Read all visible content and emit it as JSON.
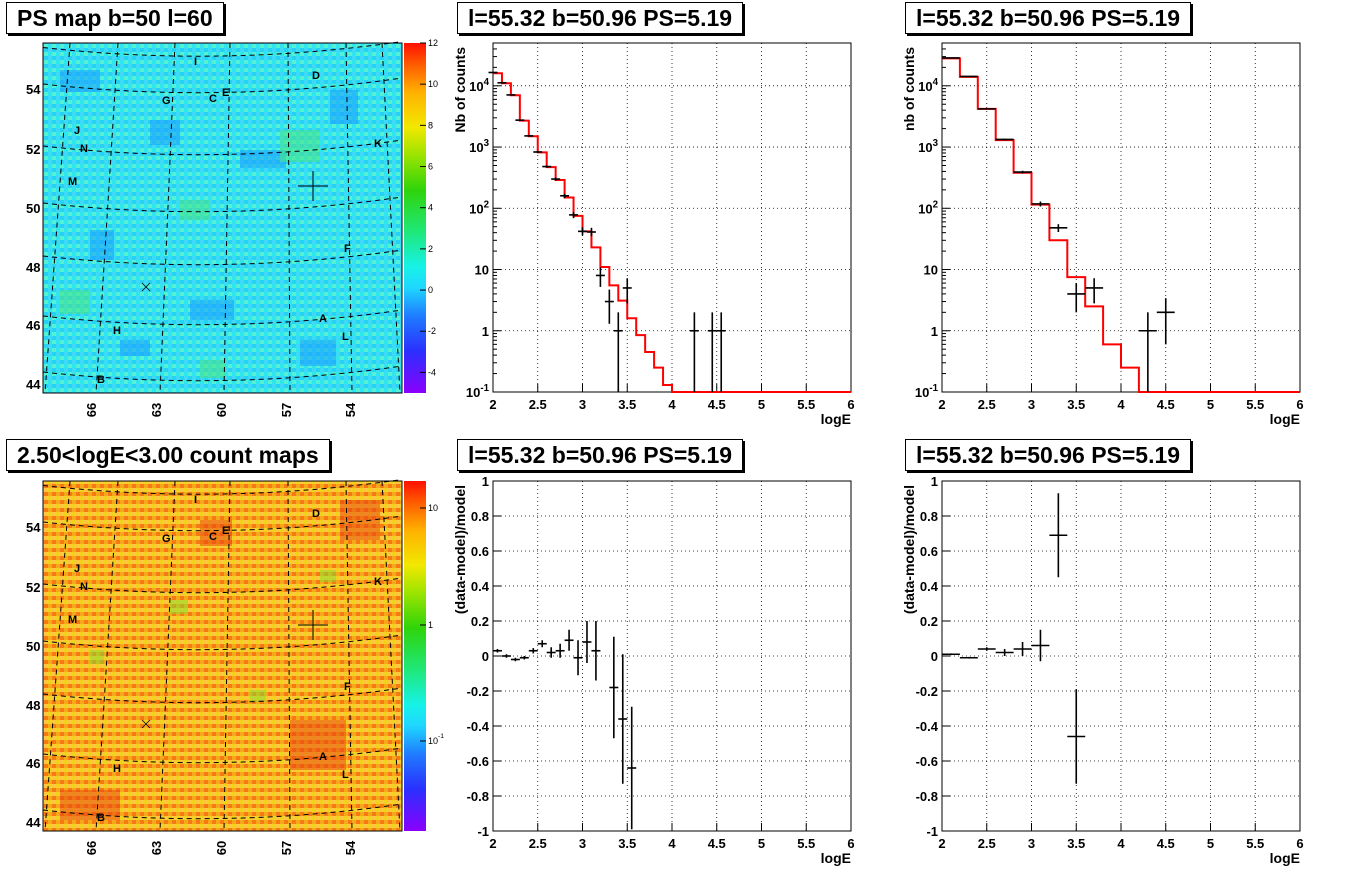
{
  "titles": {
    "map_top": "PS map b=50 l=60",
    "map_bottom": "2.50<logE<3.00 count maps",
    "spec_top_mid": "l=55.32 b=50.96 PS=5.19",
    "spec_top_right": "l=55.32 b=50.96 PS=5.19",
    "res_bottom_mid": "l=55.32 b=50.96 PS=5.19",
    "res_bottom_right": "l=55.32 b=50.96 PS=5.19"
  },
  "colors": {
    "model_line": "#ff0000",
    "data": "#000000",
    "grid": "#000000",
    "background": "#ffffff"
  },
  "chart_data": [
    {
      "id": "map_top",
      "type": "heatmap",
      "title": "PS map b=50 l=60",
      "xticks": [
        "66",
        "63",
        "60",
        "57",
        "54"
      ],
      "yticks": [
        "54",
        "52",
        "50",
        "48",
        "46",
        "44"
      ],
      "colorbar_ticks": [
        "12",
        "10",
        "8",
        "6",
        "4",
        "2",
        "0",
        "-2",
        "-4"
      ],
      "zlim": [
        -5,
        12
      ],
      "source_labels": [
        "I",
        "D",
        "G",
        "C",
        "E",
        "J",
        "N",
        "K",
        "M",
        "F",
        "A",
        "H",
        "L",
        "B"
      ]
    },
    {
      "id": "spec_top_mid",
      "type": "line",
      "title": "l=55.32 b=50.96 PS=5.19",
      "xlabel": "logE",
      "ylabel": "Nb of counts",
      "xlim": [
        2,
        6
      ],
      "ylim": [
        0.1,
        50000
      ],
      "yscale": "log",
      "grid": true,
      "xticks": [
        "2",
        "2.5",
        "3",
        "3.5",
        "4",
        "4.5",
        "5",
        "5.5",
        "6"
      ],
      "yticks": [
        "10^4",
        "10^3",
        "10^2",
        "10",
        "1",
        "10^-1"
      ],
      "model_step": {
        "edges": [
          2.0,
          2.1,
          2.2,
          2.3,
          2.4,
          2.5,
          2.6,
          2.7,
          2.8,
          2.9,
          3.0,
          3.1,
          3.2,
          3.3,
          3.4,
          3.5,
          3.6,
          3.7,
          3.8,
          3.9,
          4.0,
          4.1,
          6.0
        ],
        "values": [
          16000,
          11000,
          7000,
          2700,
          1500,
          820,
          470,
          290,
          150,
          75,
          42,
          23,
          11,
          5.5,
          3.1,
          1.6,
          0.85,
          0.45,
          0.25,
          0.13,
          0.1,
          0.1
        ]
      },
      "data_points": [
        {
          "x": 2.0,
          "y": 16500,
          "xerr": 0.05,
          "ylo": 16300,
          "yhi": 16700
        },
        {
          "x": 2.1,
          "y": 11200,
          "xerr": 0.05,
          "ylo": 11000,
          "yhi": 11400
        },
        {
          "x": 2.2,
          "y": 7100,
          "xerr": 0.05,
          "ylo": 6950,
          "yhi": 7250
        },
        {
          "x": 2.3,
          "y": 2750,
          "xerr": 0.05,
          "ylo": 2700,
          "yhi": 2800
        },
        {
          "x": 2.4,
          "y": 1520,
          "xerr": 0.05,
          "ylo": 1480,
          "yhi": 1560
        },
        {
          "x": 2.5,
          "y": 830,
          "xerr": 0.05,
          "ylo": 800,
          "yhi": 860
        },
        {
          "x": 2.6,
          "y": 480,
          "xerr": 0.05,
          "ylo": 460,
          "yhi": 500
        },
        {
          "x": 2.7,
          "y": 300,
          "xerr": 0.05,
          "ylo": 283,
          "yhi": 317
        },
        {
          "x": 2.8,
          "y": 160,
          "xerr": 0.05,
          "ylo": 147,
          "yhi": 173
        },
        {
          "x": 2.9,
          "y": 78,
          "xerr": 0.05,
          "ylo": 69,
          "yhi": 87
        },
        {
          "x": 3.0,
          "y": 42,
          "xerr": 0.05,
          "ylo": 36,
          "yhi": 49
        },
        {
          "x": 3.1,
          "y": 41,
          "xerr": 0.05,
          "ylo": 35,
          "yhi": 48
        },
        {
          "x": 3.2,
          "y": 8,
          "xerr": 0.05,
          "ylo": 5.2,
          "yhi": 10.8
        },
        {
          "x": 3.3,
          "y": 3,
          "xerr": 0.05,
          "ylo": 1.3,
          "yhi": 4.7
        },
        {
          "x": 3.4,
          "y": 1,
          "xerr": 0.05,
          "ylo": 0.1,
          "yhi": 2
        },
        {
          "x": 3.5,
          "y": 5,
          "xerr": 0.05,
          "ylo": 2.8,
          "yhi": 7.2
        },
        {
          "x": 4.25,
          "y": 1,
          "xerr": 0.05,
          "ylo": 0.1,
          "yhi": 2
        },
        {
          "x": 4.45,
          "y": 1,
          "xerr": 0.05,
          "ylo": 0.1,
          "yhi": 2
        },
        {
          "x": 4.55,
          "y": 1,
          "xerr": 0.05,
          "ylo": 0.1,
          "yhi": 2
        }
      ]
    },
    {
      "id": "map_bottom",
      "type": "heatmap",
      "title": "2.50<logE<3.00 count maps",
      "xticks": [
        "66",
        "63",
        "60",
        "57",
        "54"
      ],
      "yticks": [
        "54",
        "52",
        "50",
        "48",
        "46",
        "44"
      ],
      "colorbar_ticks": [
        "10",
        "1",
        "10^-1"
      ],
      "zscale": "log",
      "source_labels": [
        "I",
        "D",
        "G",
        "C",
        "E",
        "J",
        "N",
        "K",
        "M",
        "F",
        "A",
        "H",
        "L",
        "B"
      ]
    },
    {
      "id": "spec_top_right",
      "type": "line",
      "title": "l=55.32 b=50.96 PS=5.19",
      "xlabel": "logE",
      "ylabel": "nb of counts",
      "xlim": [
        2,
        6
      ],
      "ylim": [
        0.1,
        50000
      ],
      "yscale": "log",
      "grid": true,
      "xticks": [
        "2",
        "2.5",
        "3",
        "3.5",
        "4",
        "4.5",
        "5",
        "5.5",
        "6"
      ],
      "yticks": [
        "10^4",
        "10^3",
        "10^2",
        "10",
        "1",
        "10^-1"
      ],
      "model_step": {
        "edges": [
          2.0,
          2.2,
          2.4,
          2.6,
          2.8,
          3.0,
          3.2,
          3.4,
          3.6,
          3.8,
          4.0,
          4.2,
          6.0
        ],
        "values": [
          28000,
          14000,
          4200,
          1300,
          380,
          115,
          30,
          7.5,
          2.5,
          0.6,
          0.25,
          0.1
        ]
      },
      "data_points": [
        {
          "x": 2.1,
          "y": 28500,
          "xerr": 0.1,
          "ylo": 28200,
          "yhi": 28800
        },
        {
          "x": 2.3,
          "y": 14200,
          "xerr": 0.1,
          "ylo": 14000,
          "yhi": 14400
        },
        {
          "x": 2.5,
          "y": 4200,
          "xerr": 0.1,
          "ylo": 4130,
          "yhi": 4270
        },
        {
          "x": 2.7,
          "y": 1330,
          "xerr": 0.1,
          "ylo": 1290,
          "yhi": 1370
        },
        {
          "x": 2.9,
          "y": 390,
          "xerr": 0.1,
          "ylo": 370,
          "yhi": 410
        },
        {
          "x": 3.1,
          "y": 118,
          "xerr": 0.1,
          "ylo": 107,
          "yhi": 129
        },
        {
          "x": 3.3,
          "y": 48,
          "xerr": 0.1,
          "ylo": 41,
          "yhi": 55
        },
        {
          "x": 3.5,
          "y": 4,
          "xerr": 0.1,
          "ylo": 2,
          "yhi": 6
        },
        {
          "x": 3.7,
          "y": 5,
          "xerr": 0.1,
          "ylo": 2.8,
          "yhi": 7.2
        },
        {
          "x": 4.3,
          "y": 1,
          "xerr": 0.1,
          "ylo": 0.1,
          "yhi": 2
        },
        {
          "x": 4.5,
          "y": 2,
          "xerr": 0.1,
          "ylo": 0.6,
          "yhi": 3.4
        }
      ]
    },
    {
      "id": "res_bottom_mid",
      "type": "scatter",
      "title": "l=55.32 b=50.96 PS=5.19",
      "xlabel": "logE",
      "ylabel": "(data-model)/model",
      "xlim": [
        2,
        6
      ],
      "ylim": [
        -1,
        1
      ],
      "grid": true,
      "xticks": [
        "2",
        "2.5",
        "3",
        "3.5",
        "4",
        "4.5",
        "5",
        "5.5",
        "6"
      ],
      "yticks": [
        "1",
        "0.8",
        "0.6",
        "0.4",
        "0.2",
        "0",
        "-0.2",
        "-0.4",
        "-0.6",
        "-0.8",
        "-1"
      ],
      "data_points": [
        {
          "x": 2.05,
          "y": 0.03,
          "xerr": 0.05,
          "yerr": 0.01
        },
        {
          "x": 2.15,
          "y": 0.0,
          "xerr": 0.05,
          "yerr": 0.01
        },
        {
          "x": 2.25,
          "y": -0.02,
          "xerr": 0.05,
          "yerr": 0.01
        },
        {
          "x": 2.35,
          "y": -0.01,
          "xerr": 0.05,
          "yerr": 0.01
        },
        {
          "x": 2.45,
          "y": 0.03,
          "xerr": 0.05,
          "yerr": 0.015
        },
        {
          "x": 2.55,
          "y": 0.07,
          "xerr": 0.05,
          "yerr": 0.02
        },
        {
          "x": 2.65,
          "y": 0.02,
          "xerr": 0.05,
          "yerr": 0.03
        },
        {
          "x": 2.75,
          "y": 0.03,
          "xerr": 0.05,
          "yerr": 0.04
        },
        {
          "x": 2.85,
          "y": 0.09,
          "xerr": 0.05,
          "yerr": 0.06
        },
        {
          "x": 2.95,
          "y": -0.01,
          "xerr": 0.05,
          "yerr": 0.1
        },
        {
          "x": 3.05,
          "y": 0.08,
          "xerr": 0.05,
          "yerr": 0.12
        },
        {
          "x": 3.15,
          "y": 0.03,
          "xerr": 0.05,
          "yerr": 0.17
        },
        {
          "x": 3.35,
          "y": -0.18,
          "xerr": 0.05,
          "yerr": 0.29
        },
        {
          "x": 3.45,
          "y": -0.36,
          "xerr": 0.05,
          "yerr": 0.37
        },
        {
          "x": 3.55,
          "y": -0.64,
          "xerr": 0.05,
          "yerr": 0.35
        }
      ]
    },
    {
      "id": "res_bottom_right",
      "type": "scatter",
      "title": "l=55.32 b=50.96 PS=5.19",
      "xlabel": "logE",
      "ylabel": "(data-model)/model",
      "xlim": [
        2,
        6
      ],
      "ylim": [
        -1,
        1
      ],
      "grid": true,
      "xticks": [
        "2",
        "2.5",
        "3",
        "3.5",
        "4",
        "4.5",
        "5",
        "5.5",
        "6"
      ],
      "yticks": [
        "1",
        "0.8",
        "0.6",
        "0.4",
        "0.2",
        "0",
        "-0.2",
        "-0.4",
        "-0.6",
        "-0.8",
        "-1"
      ],
      "data_points": [
        {
          "x": 2.1,
          "y": 0.01,
          "xerr": 0.1,
          "yerr": 0.005
        },
        {
          "x": 2.3,
          "y": -0.01,
          "xerr": 0.1,
          "yerr": 0.005
        },
        {
          "x": 2.5,
          "y": 0.04,
          "xerr": 0.1,
          "yerr": 0.01
        },
        {
          "x": 2.7,
          "y": 0.02,
          "xerr": 0.1,
          "yerr": 0.02
        },
        {
          "x": 2.9,
          "y": 0.04,
          "xerr": 0.1,
          "yerr": 0.04
        },
        {
          "x": 3.1,
          "y": 0.06,
          "xerr": 0.1,
          "yerr": 0.09
        },
        {
          "x": 3.3,
          "y": 0.69,
          "xerr": 0.1,
          "yerr": 0.24
        },
        {
          "x": 3.5,
          "y": -0.46,
          "xerr": 0.1,
          "yerr": 0.27
        }
      ]
    }
  ]
}
